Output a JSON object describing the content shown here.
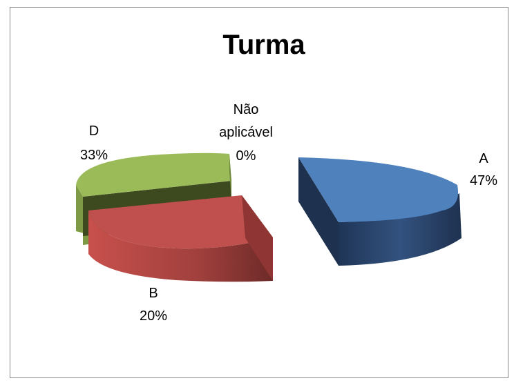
{
  "chart_data": {
    "type": "pie",
    "title": "Turma",
    "slices": [
      {
        "label": "A",
        "value": 47,
        "percent_label": "47%",
        "color": "#4F81BD"
      },
      {
        "label": "B",
        "value": 20,
        "percent_label": "20%",
        "color": "#C0504D"
      },
      {
        "label": "D",
        "value": 33,
        "percent_label": "33%",
        "color": "#9BBB59"
      },
      {
        "label_lines": [
          "Não",
          "aplicável"
        ],
        "label": "Não aplicável",
        "value": 0,
        "percent_label": "0%",
        "color": "#8064A2"
      }
    ],
    "exploded": true,
    "three_d": true
  }
}
